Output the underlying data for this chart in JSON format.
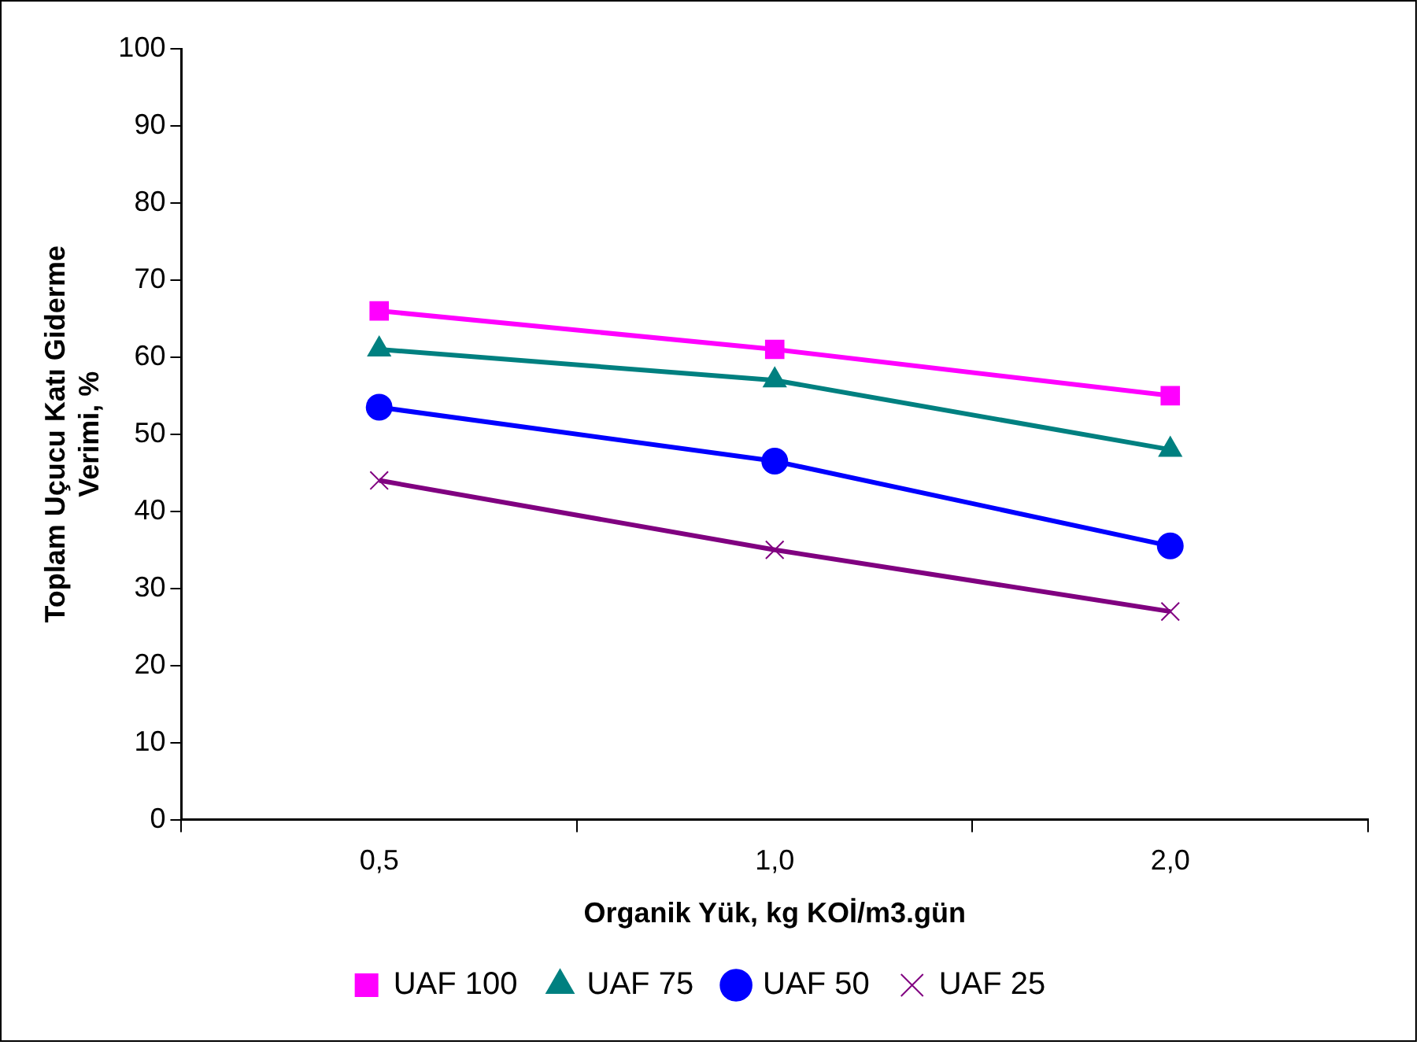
{
  "chart_data": {
    "type": "line",
    "xlabel": "Organik Yük, kg KOİ/m3.gün",
    "ylabel": "Toplam Uçucu Katı Giderme Verimi, %",
    "categories": [
      "0,5",
      "1,0",
      "2,0"
    ],
    "series": [
      {
        "name": "UAF 100",
        "color": "#ff00ff",
        "marker": "square",
        "values": [
          66,
          61,
          55
        ]
      },
      {
        "name": "UAF 75",
        "color": "#008080",
        "marker": "triangle",
        "values": [
          61,
          57,
          48
        ]
      },
      {
        "name": "UAF 50",
        "color": "#0000ff",
        "marker": "circle",
        "values": [
          53.5,
          46.5,
          35.5
        ]
      },
      {
        "name": "UAF 25",
        "color": "#800080",
        "marker": "cross",
        "values": [
          44,
          35,
          27
        ]
      }
    ],
    "ylim": [
      0,
      100
    ],
    "yticks": [
      0,
      10,
      20,
      30,
      40,
      50,
      60,
      70,
      80,
      90,
      100
    ],
    "grid": false,
    "legend": "bottom"
  }
}
